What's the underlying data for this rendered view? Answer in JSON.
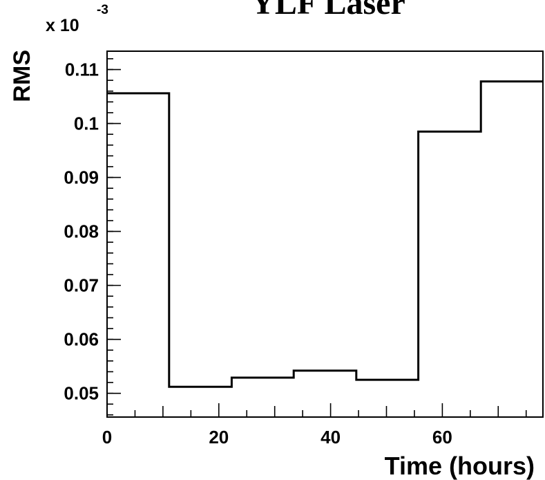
{
  "chart_data": {
    "type": "histogram",
    "title": "YLF  Laser",
    "xlabel": "Time (hours)",
    "ylabel": "RMS",
    "y_multiplier_label": "x 10",
    "y_multiplier_exponent": "-3",
    "xlim": [
      0,
      78
    ],
    "ylim": [
      0.0456,
      0.1134
    ],
    "x_ticks": [
      0,
      20,
      40,
      60
    ],
    "x_tick_labels": [
      "0",
      "20",
      "40",
      "60"
    ],
    "y_ticks": [
      0.05,
      0.06,
      0.07,
      0.08,
      0.09,
      0.1,
      0.11
    ],
    "y_tick_labels": [
      "0.05",
      "0.06",
      "0.07",
      "0.08",
      "0.09",
      "0.1",
      "0.11"
    ],
    "bin_edges": [
      0,
      11.1,
      22.3,
      33.4,
      44.6,
      55.7,
      66.9,
      78
    ],
    "values": [
      0.1056,
      0.0512,
      0.0529,
      0.0542,
      0.0525,
      0.0985,
      0.1078
    ],
    "grid": false,
    "line_color": "#000000"
  }
}
